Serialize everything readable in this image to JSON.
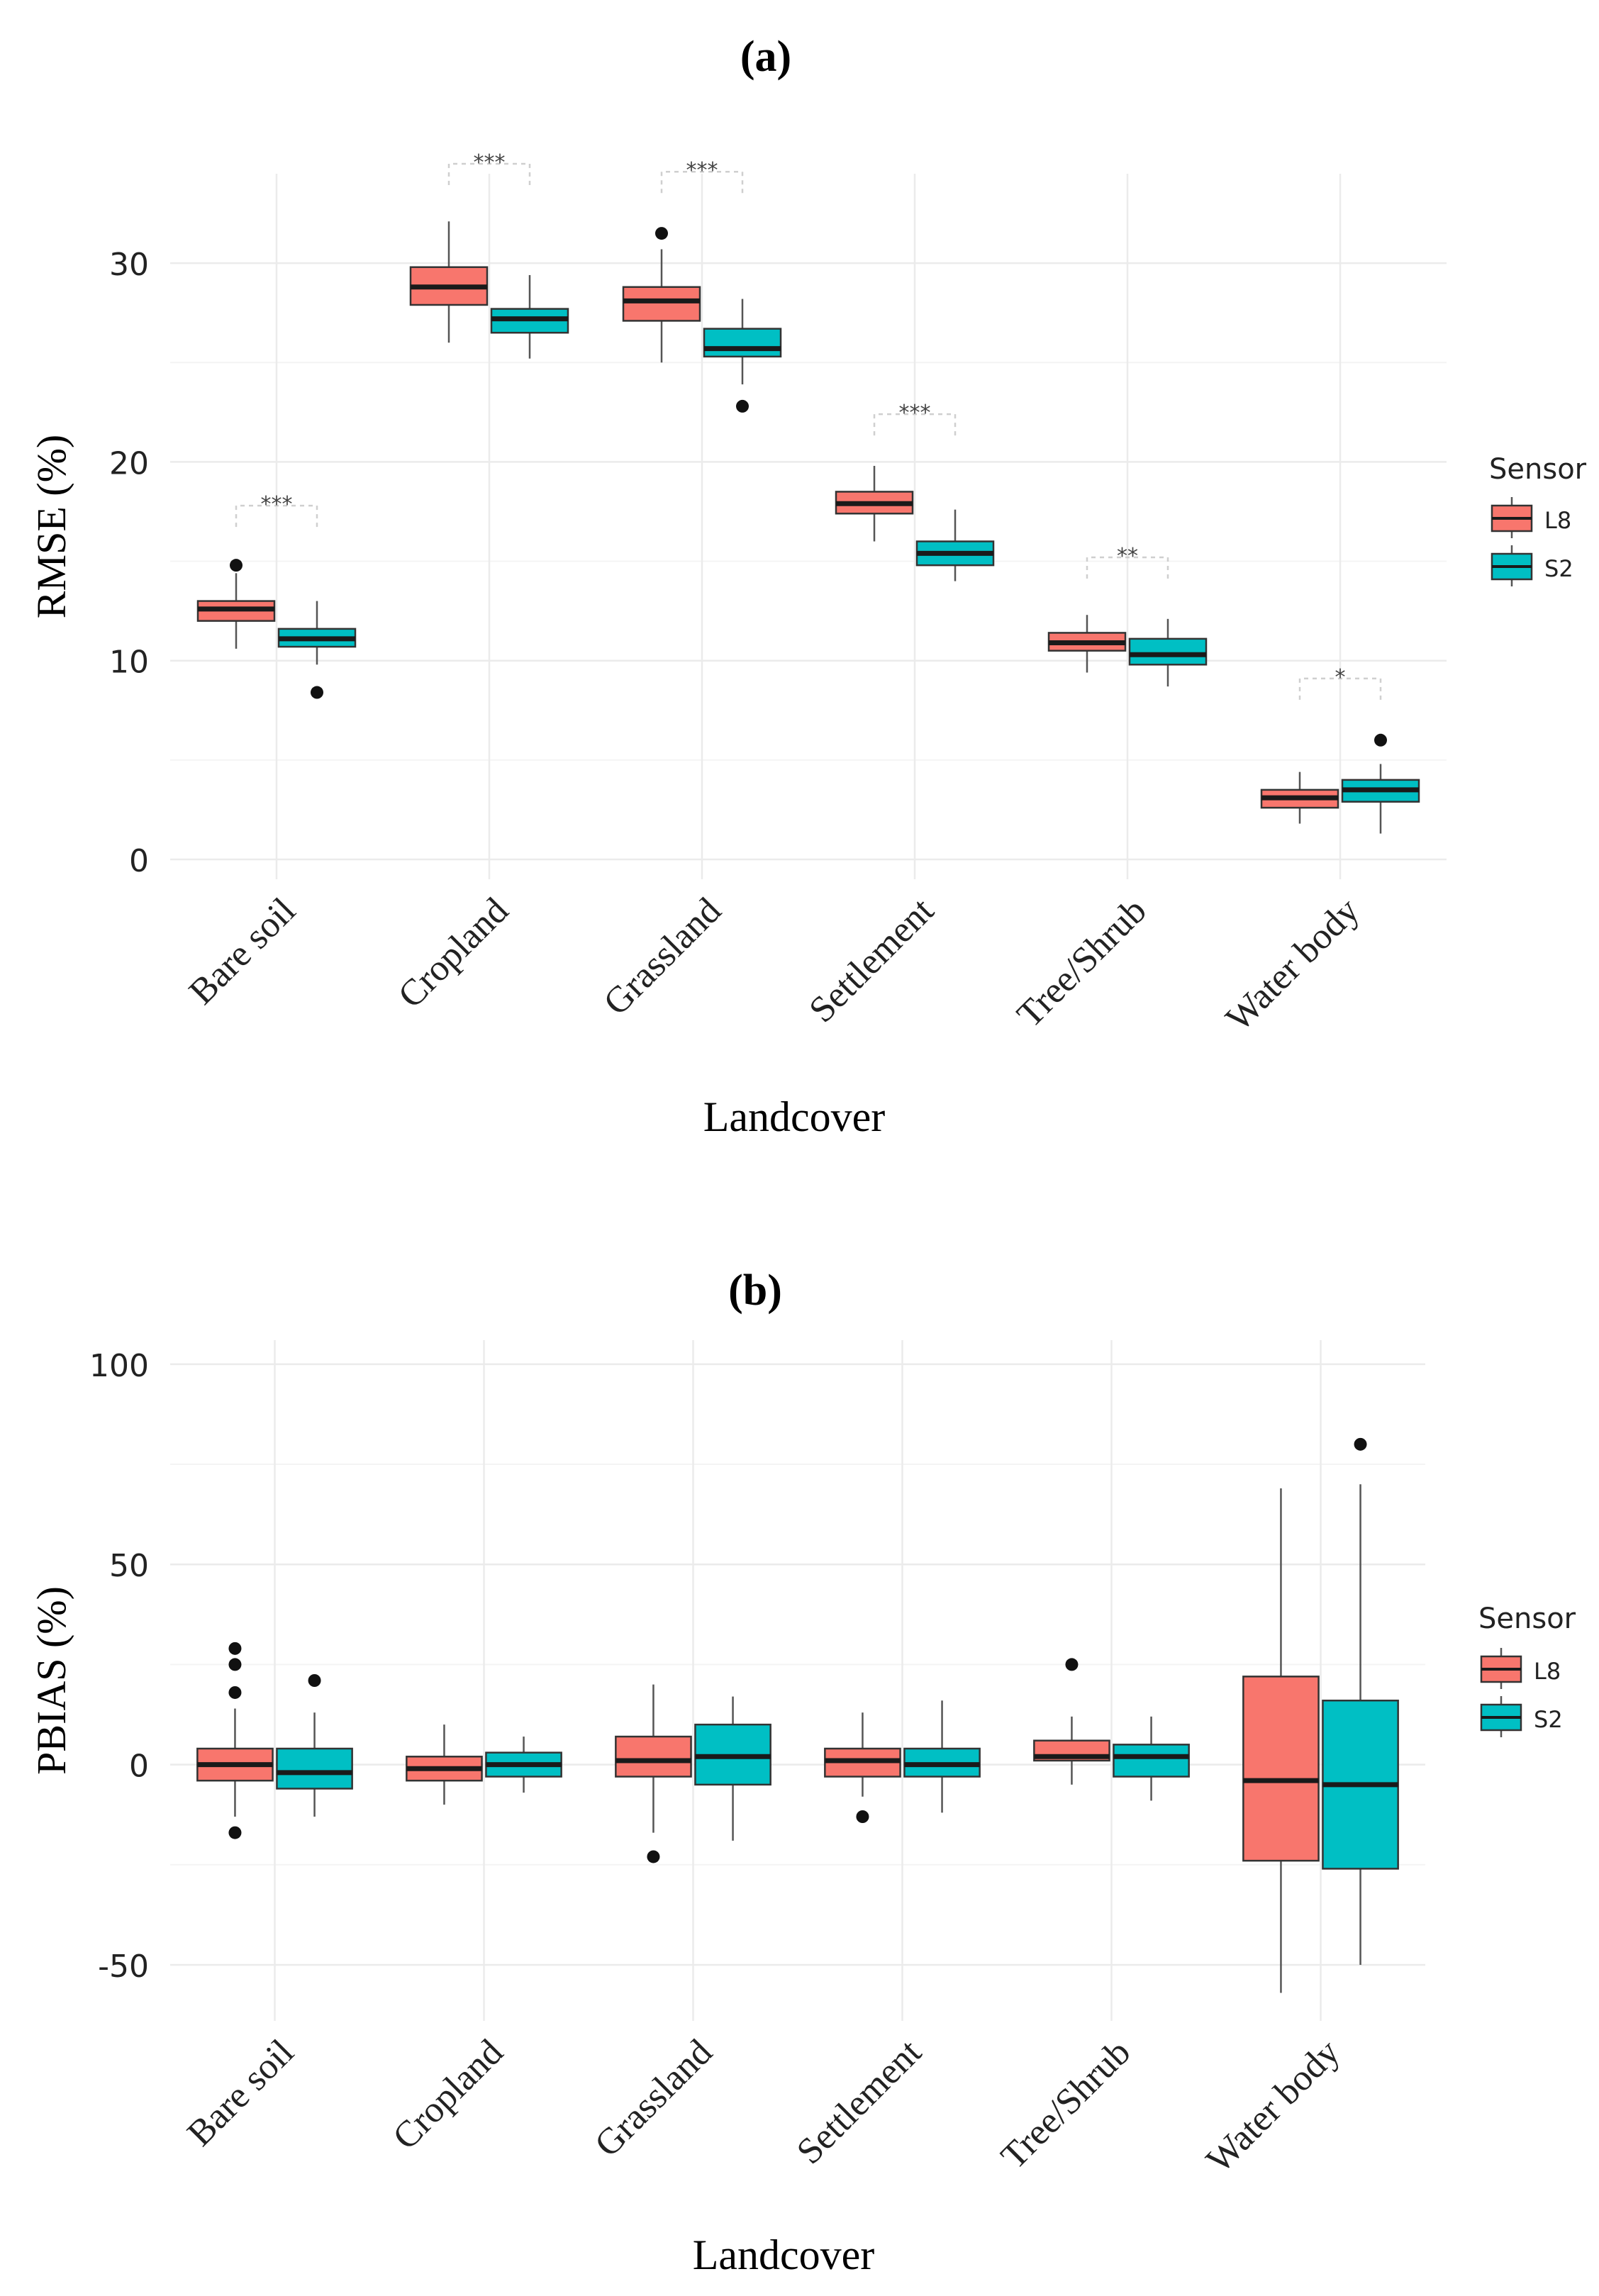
{
  "figure": {
    "legend_title": "Sensor"
  },
  "colors": {
    "L8": "#F8766D",
    "S2": "#00BFC4",
    "grid_major": "#EBEBEB",
    "grid_minor": "#F4F4F4",
    "text": "#222222",
    "box_line": "#333333"
  },
  "chart_data": [
    {
      "panel": "(a)",
      "type": "boxplot",
      "xlabel": "Landcover",
      "ylabel": "RMSE (%)",
      "ylim": [
        -1,
        34.5
      ],
      "yticks": [
        0,
        10,
        20,
        30
      ],
      "grid": true,
      "legend_position": "right",
      "categories": [
        "Bare soil",
        "Cropland",
        "Grassland",
        "Settlement",
        "Tree/Shrub",
        "Water body"
      ],
      "series": [
        {
          "name": "L8",
          "boxes": [
            {
              "whisker_low": 10.6,
              "q1": 12.0,
              "median": 12.6,
              "q3": 13.0,
              "whisker_high": 14.4,
              "outliers": [
                14.8
              ]
            },
            {
              "whisker_low": 26.0,
              "q1": 27.9,
              "median": 28.8,
              "q3": 29.8,
              "whisker_high": 32.1,
              "outliers": []
            },
            {
              "whisker_low": 25.0,
              "q1": 27.1,
              "median": 28.1,
              "q3": 28.8,
              "whisker_high": 30.7,
              "outliers": [
                31.5
              ]
            },
            {
              "whisker_low": 16.0,
              "q1": 17.4,
              "median": 17.9,
              "q3": 18.5,
              "whisker_high": 19.8,
              "outliers": []
            },
            {
              "whisker_low": 9.4,
              "q1": 10.5,
              "median": 10.9,
              "q3": 11.4,
              "whisker_high": 12.3,
              "outliers": []
            },
            {
              "whisker_low": 1.8,
              "q1": 2.6,
              "median": 3.1,
              "q3": 3.5,
              "whisker_high": 4.4,
              "outliers": []
            }
          ]
        },
        {
          "name": "S2",
          "boxes": [
            {
              "whisker_low": 9.8,
              "q1": 10.7,
              "median": 11.1,
              "q3": 11.6,
              "whisker_high": 13.0,
              "outliers": [
                8.4
              ]
            },
            {
              "whisker_low": 25.2,
              "q1": 26.5,
              "median": 27.2,
              "q3": 27.7,
              "whisker_high": 29.4,
              "outliers": []
            },
            {
              "whisker_low": 23.9,
              "q1": 25.3,
              "median": 25.7,
              "q3": 26.7,
              "whisker_high": 28.2,
              "outliers": [
                22.8
              ]
            },
            {
              "whisker_low": 14.0,
              "q1": 14.8,
              "median": 15.4,
              "q3": 16.0,
              "whisker_high": 17.6,
              "outliers": []
            },
            {
              "whisker_low": 8.7,
              "q1": 9.8,
              "median": 10.3,
              "q3": 11.1,
              "whisker_high": 12.1,
              "outliers": []
            },
            {
              "whisker_low": 1.3,
              "q1": 2.9,
              "median": 3.5,
              "q3": 4.0,
              "whisker_high": 4.8,
              "outliers": [
                6.0
              ]
            }
          ]
        }
      ],
      "significance": [
        {
          "category": "Bare soil",
          "label": "***",
          "y": 17.8
        },
        {
          "category": "Cropland",
          "label": "***",
          "y": 35.0
        },
        {
          "category": "Grassland",
          "label": "***",
          "y": 34.6
        },
        {
          "category": "Settlement",
          "label": "***",
          "y": 22.4
        },
        {
          "category": "Tree/Shrub",
          "label": "**",
          "y": 15.2
        },
        {
          "category": "Water body",
          "label": "*",
          "y": 9.1
        }
      ]
    },
    {
      "panel": "(b)",
      "type": "boxplot",
      "xlabel": "Landcover",
      "ylabel": "PBIAS (%)",
      "ylim": [
        -64,
        106
      ],
      "yticks": [
        -50,
        0,
        50,
        100
      ],
      "grid": true,
      "legend_position": "right",
      "categories": [
        "Bare soil",
        "Cropland",
        "Grassland",
        "Settlement",
        "Tree/Shrub",
        "Water body"
      ],
      "series": [
        {
          "name": "L8",
          "boxes": [
            {
              "whisker_low": -13,
              "q1": -4,
              "median": 0,
              "q3": 4,
              "whisker_high": 14,
              "outliers": [
                29,
                25,
                18,
                -17
              ]
            },
            {
              "whisker_low": -10,
              "q1": -4,
              "median": -1,
              "q3": 2,
              "whisker_high": 10,
              "outliers": []
            },
            {
              "whisker_low": -17,
              "q1": -3,
              "median": 1,
              "q3": 7,
              "whisker_high": 20,
              "outliers": [
                -23
              ]
            },
            {
              "whisker_low": -8,
              "q1": -3,
              "median": 1,
              "q3": 4,
              "whisker_high": 13,
              "outliers": [
                -13
              ]
            },
            {
              "whisker_low": -5,
              "q1": 1,
              "median": 2,
              "q3": 6,
              "whisker_high": 12,
              "outliers": [
                25
              ]
            },
            {
              "whisker_low": -57,
              "q1": -24,
              "median": -4,
              "q3": 22,
              "whisker_high": 69,
              "outliers": []
            }
          ]
        },
        {
          "name": "S2",
          "boxes": [
            {
              "whisker_low": -13,
              "q1": -6,
              "median": -2,
              "q3": 4,
              "whisker_high": 13,
              "outliers": [
                21
              ]
            },
            {
              "whisker_low": -7,
              "q1": -3,
              "median": 0,
              "q3": 3,
              "whisker_high": 7,
              "outliers": []
            },
            {
              "whisker_low": -19,
              "q1": -5,
              "median": 2,
              "q3": 10,
              "whisker_high": 17,
              "outliers": []
            },
            {
              "whisker_low": -12,
              "q1": -3,
              "median": 0,
              "q3": 4,
              "whisker_high": 16,
              "outliers": []
            },
            {
              "whisker_low": -9,
              "q1": -3,
              "median": 2,
              "q3": 5,
              "whisker_high": 12,
              "outliers": []
            },
            {
              "whisker_low": -50,
              "q1": -26,
              "median": -5,
              "q3": 16,
              "whisker_high": 70,
              "outliers": [
                80
              ]
            }
          ]
        }
      ]
    }
  ]
}
